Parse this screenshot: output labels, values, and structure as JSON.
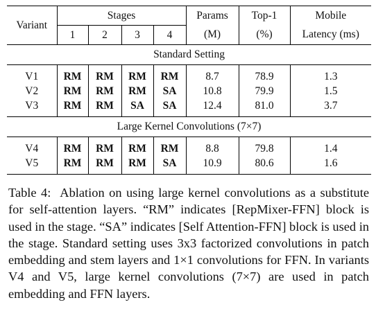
{
  "table": {
    "headers": {
      "variant": "Variant",
      "stages": "Stages",
      "stage_numbers": [
        "1",
        "2",
        "3",
        "4"
      ],
      "params": "Params",
      "params_unit": "(M)",
      "top1": "Top-1",
      "top1_unit": "(%)",
      "mobile": "Mobile",
      "mobile_unit": "Latency (ms)"
    },
    "sections": [
      {
        "title": "Standard Setting",
        "rows": [
          {
            "variant": "V1",
            "stages": [
              "RM",
              "RM",
              "RM",
              "RM"
            ],
            "params": "8.7",
            "top1": "78.9",
            "latency": "1.3"
          },
          {
            "variant": "V2",
            "stages": [
              "RM",
              "RM",
              "RM",
              "SA"
            ],
            "params": "10.8",
            "top1": "79.9",
            "latency": "1.5"
          },
          {
            "variant": "V3",
            "stages": [
              "RM",
              "RM",
              "SA",
              "SA"
            ],
            "params": "12.4",
            "top1": "81.0",
            "latency": "3.7"
          }
        ]
      },
      {
        "title": "Large Kernel Convolutions (7×7)",
        "rows": [
          {
            "variant": "V4",
            "stages": [
              "RM",
              "RM",
              "RM",
              "RM"
            ],
            "params": "8.8",
            "top1": "79.8",
            "latency": "1.4"
          },
          {
            "variant": "V5",
            "stages": [
              "RM",
              "RM",
              "RM",
              "SA"
            ],
            "params": "10.9",
            "top1": "80.6",
            "latency": "1.6"
          }
        ]
      }
    ]
  },
  "caption": {
    "label": "Table 4:",
    "text": "Ablation on using large kernel convolutions as a substitute for self-attention layers. “RM” indicates [RepMixer-FFN] block is used in the stage. “SA” indicates [Self Attention-FFN] block is used in the stage. Standard setting uses 3x3 factorized convolutions in patch embedding and stem layers and 1×1 convolutions for FFN. In variants V4 and V5, large kernel convolutions (7×7) are used in patch embedding and FFN layers."
  }
}
